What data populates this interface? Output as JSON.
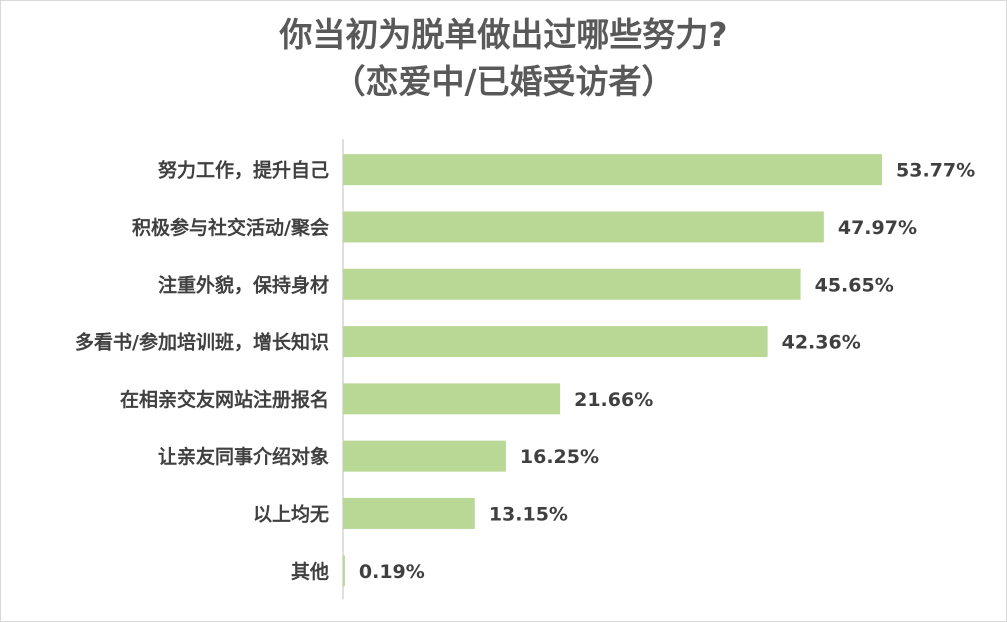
{
  "chart_data": {
    "type": "bar",
    "orientation": "horizontal",
    "title": "你当初为脱单做出过哪些努力?",
    "subtitle": "（恋爱中/已婚受访者）",
    "categories": [
      "努力工作，提升自己",
      "积极参与社交活动/聚会",
      "注重外貌，保持身材",
      "多看书/参加培训班，增长知识",
      "在相亲交友网站注册报名",
      "让亲友同事介绍对象",
      "以上均无",
      "其他"
    ],
    "values": [
      53.77,
      47.97,
      45.65,
      42.36,
      21.66,
      16.25,
      13.15,
      0.19
    ],
    "value_labels": [
      "53.77%",
      "47.97%",
      "45.65%",
      "42.36%",
      "21.66%",
      "16.25%",
      "13.15%",
      "0.19%"
    ],
    "xlim": [
      0,
      70
    ],
    "unit": "%",
    "grid": false,
    "legend": "none",
    "colors": {
      "bar": "#b9d896",
      "axis": "#bfbfbf",
      "text": "#404040",
      "title": "#595959"
    }
  }
}
